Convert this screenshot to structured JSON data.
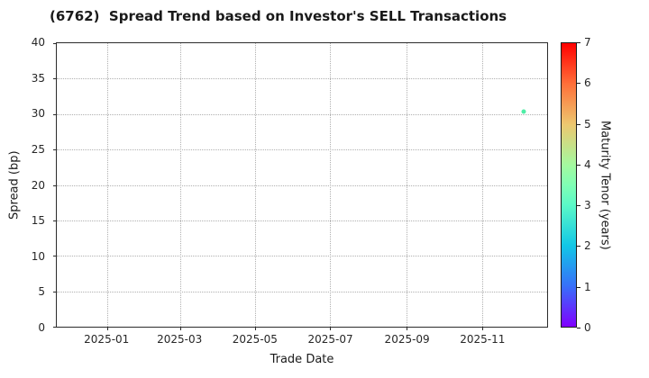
{
  "title": "(6762)  Spread Trend based on Investor's SELL Transactions",
  "chart_data": {
    "type": "scatter",
    "title": "(6762)  Spread Trend based on Investor's SELL Transactions",
    "xlabel": "Trade Date",
    "ylabel": "Spread (bp)",
    "grid": true,
    "x_domain": [
      "2024-11-21",
      "2025-12-24"
    ],
    "y_domain": [
      0,
      40
    ],
    "x_ticks": [
      {
        "date": "2025-01-01",
        "label": "2025-01"
      },
      {
        "date": "2025-03-01",
        "label": "2025-03"
      },
      {
        "date": "2025-05-01",
        "label": "2025-05"
      },
      {
        "date": "2025-07-01",
        "label": "2025-07"
      },
      {
        "date": "2025-09-01",
        "label": "2025-09"
      },
      {
        "date": "2025-11-01",
        "label": "2025-11"
      }
    ],
    "y_ticks": [
      0,
      5,
      10,
      15,
      20,
      25,
      30,
      35,
      40
    ],
    "points": [
      {
        "date": "2025-12-05",
        "spread_bp": 30.3,
        "maturity_years": 3.3,
        "color": "#4FEDA6"
      }
    ],
    "colorbar": {
      "label": "Maturity Tenor (years)",
      "min": 0,
      "max": 7,
      "ticks": [
        0,
        1,
        2,
        3,
        4,
        5,
        6,
        7
      ],
      "gradient_stops": [
        {
          "pos": 0.0,
          "color": "#8000FF"
        },
        {
          "pos": 0.143,
          "color": "#376FF9"
        },
        {
          "pos": 0.286,
          "color": "#12C7E6"
        },
        {
          "pos": 0.429,
          "color": "#5BF9C7"
        },
        {
          "pos": 0.5,
          "color": "#80FFB4"
        },
        {
          "pos": 0.571,
          "color": "#A4F99F"
        },
        {
          "pos": 0.714,
          "color": "#EDC76F"
        },
        {
          "pos": 0.857,
          "color": "#FF6F39"
        },
        {
          "pos": 1.0,
          "color": "#FF0000"
        }
      ]
    }
  }
}
